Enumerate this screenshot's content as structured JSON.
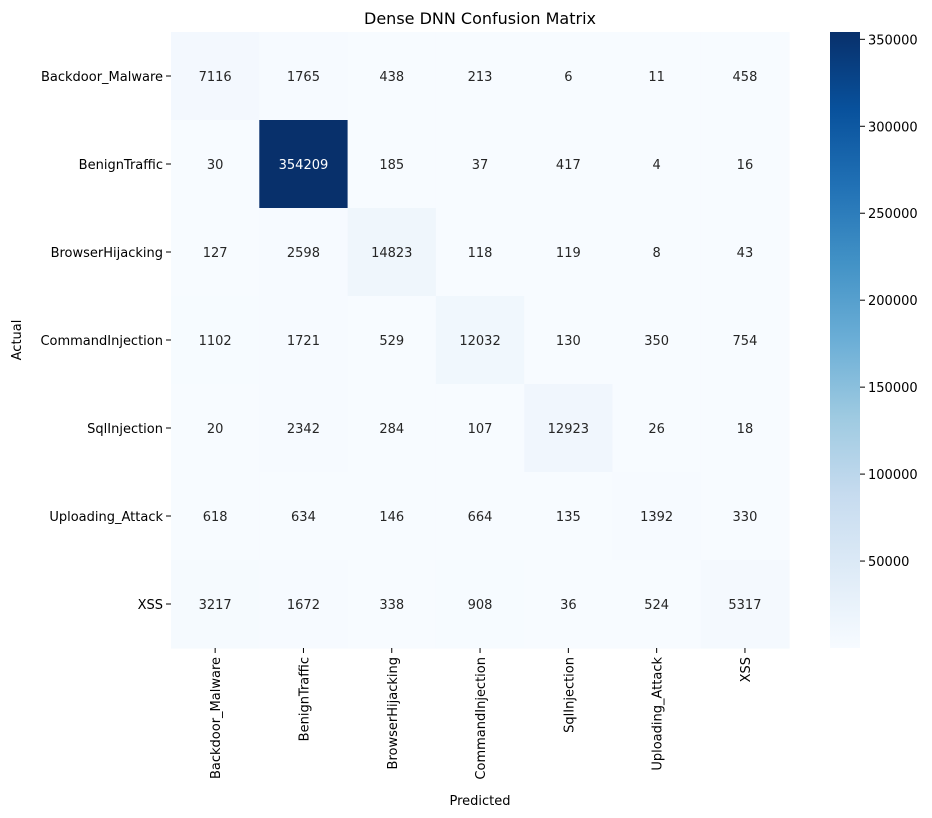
{
  "chart_data": {
    "type": "heatmap",
    "title": "Dense DNN Confusion Matrix",
    "xlabel": "Predicted",
    "ylabel": "Actual",
    "rows": [
      "Backdoor_Malware",
      "BenignTraffic",
      "BrowserHijacking",
      "CommandInjection",
      "SqlInjection",
      "Uploading_Attack",
      "XSS"
    ],
    "cols": [
      "Backdoor_Malware",
      "BenignTraffic",
      "BrowserHijacking",
      "CommandInjection",
      "SqlInjection",
      "Uploading_Attack",
      "XSS"
    ],
    "values": [
      [
        7116,
        1765,
        438,
        213,
        6,
        11,
        458
      ],
      [
        30,
        354209,
        185,
        37,
        417,
        4,
        16
      ],
      [
        127,
        2598,
        14823,
        118,
        119,
        8,
        43
      ],
      [
        1102,
        1721,
        529,
        12032,
        130,
        350,
        754
      ],
      [
        20,
        2342,
        284,
        107,
        12923,
        26,
        18
      ],
      [
        618,
        634,
        146,
        664,
        135,
        1392,
        330
      ],
      [
        3217,
        1672,
        338,
        908,
        36,
        524,
        5317
      ]
    ],
    "colorbar": {
      "min": 4,
      "max": 354209,
      "ticks": [
        50000,
        100000,
        150000,
        200000,
        250000,
        300000,
        350000
      ],
      "colormap": "Blues"
    },
    "colors": {
      "low": "#f7fbff",
      "high": "#08306b"
    }
  }
}
